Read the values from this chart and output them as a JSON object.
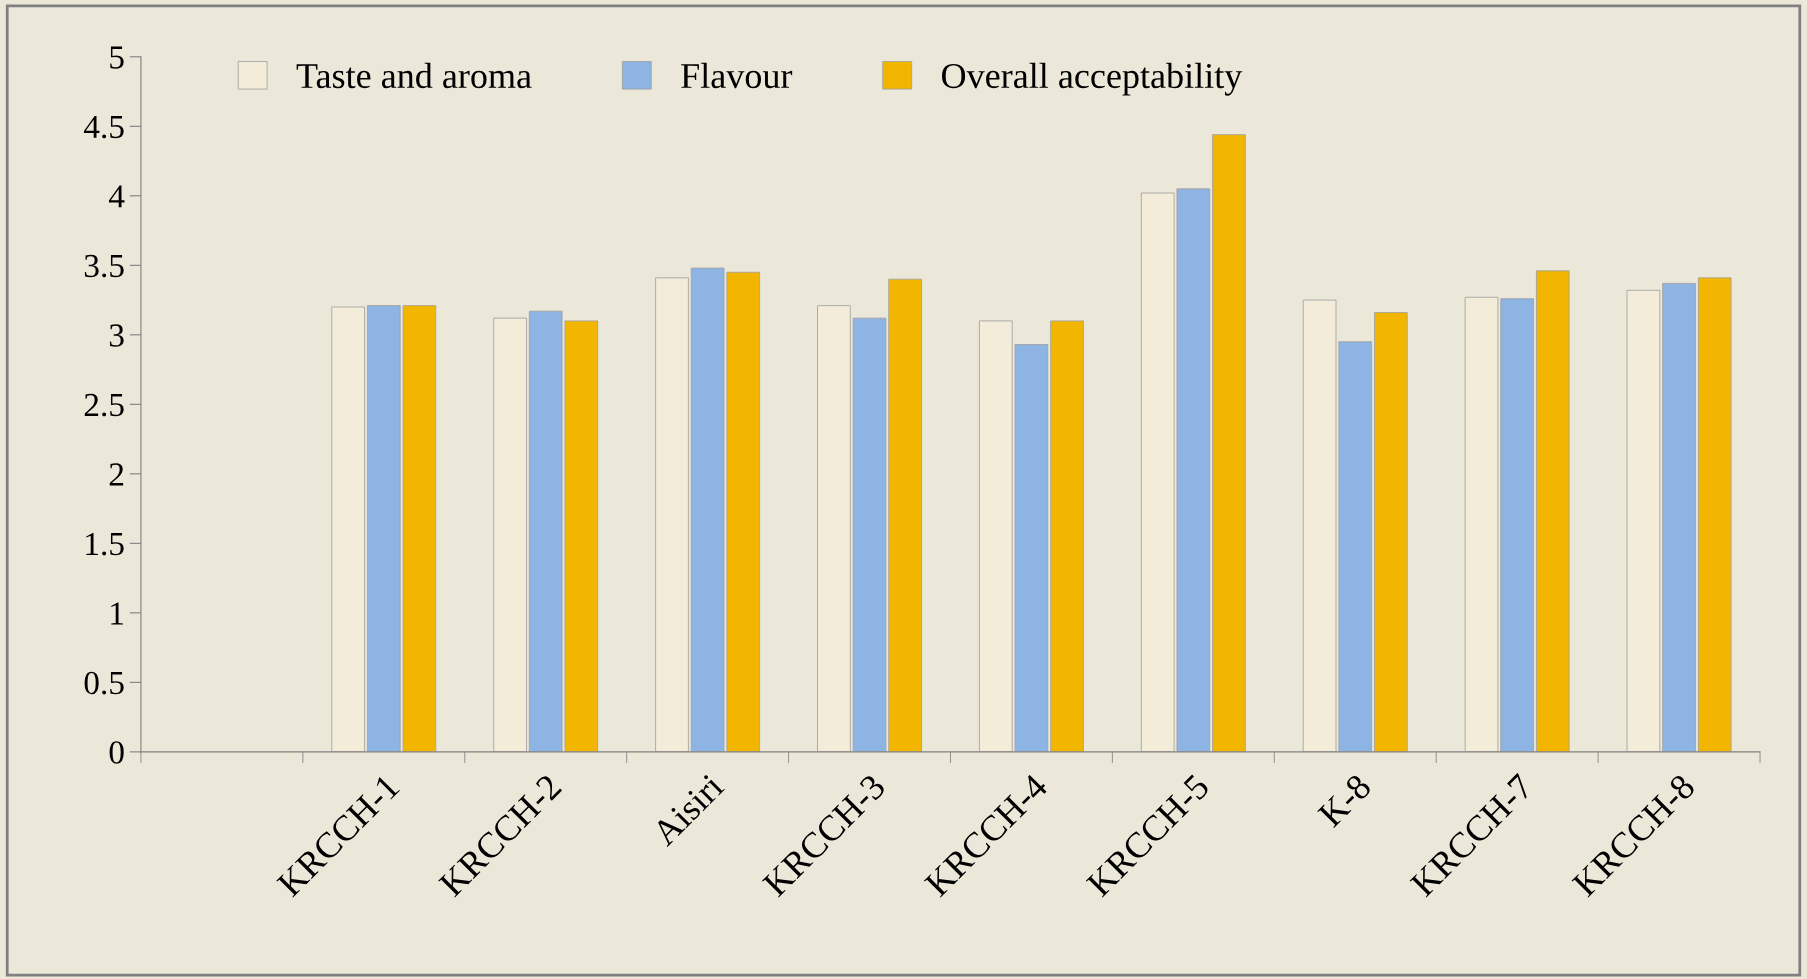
{
  "chart_data": {
    "type": "bar",
    "categories": [
      null,
      "KRCCH-1",
      "KRCCH-2",
      "Aisiri",
      "KRCCH-3",
      "KRCCH-4",
      "KRCCH-5",
      "K-8",
      "KRCCH-7",
      "KRCCH-8"
    ],
    "series": [
      {
        "name": "Taste and aroma",
        "color": "#f3ecd9",
        "values": [
          null,
          3.2,
          3.12,
          3.41,
          3.21,
          3.1,
          4.02,
          3.25,
          3.27,
          3.32
        ]
      },
      {
        "name": "Flavour",
        "color": "#8db4e2",
        "values": [
          null,
          3.21,
          3.17,
          3.48,
          3.12,
          2.93,
          4.05,
          2.95,
          3.26,
          3.37
        ]
      },
      {
        "name": "Overall acceptability",
        "color": "#f2b600",
        "values": [
          null,
          3.21,
          3.1,
          3.45,
          3.4,
          3.1,
          4.44,
          3.16,
          3.46,
          3.41
        ]
      }
    ],
    "ylim": [
      0,
      5
    ],
    "yticks": [
      0,
      0.5,
      1,
      1.5,
      2,
      2.5,
      3,
      3.5,
      4,
      4.5,
      5
    ],
    "grid": false,
    "legend": "top left"
  }
}
